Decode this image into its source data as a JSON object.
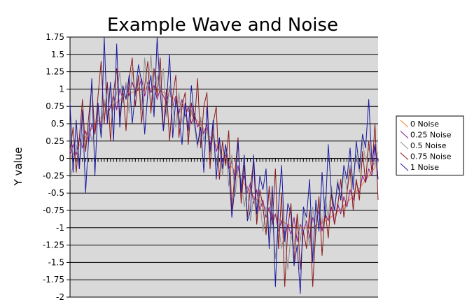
{
  "chart_data": {
    "type": "line",
    "title": "Example Wave and Noise",
    "xlabel": "",
    "ylabel": "Y value",
    "ylim": [
      -2,
      1.75
    ],
    "yticks": [
      "1.75",
      "1.5",
      "1.25",
      "1",
      "0.75",
      "0.5",
      "0.25",
      "0",
      "-0.25",
      "-0.5",
      "-0.75",
      "-1",
      "-1.25",
      "-1.5",
      "-1.75",
      "-2"
    ],
    "ytick_values": [
      1.75,
      1.5,
      1.25,
      1,
      0.75,
      0.5,
      0.25,
      0,
      -0.25,
      -0.5,
      -0.75,
      -1,
      -1.25,
      -1.5,
      -1.75,
      -2
    ],
    "x_count": 100,
    "grid": true,
    "background_color": "#d9d9d9",
    "legend": {
      "position": "right"
    },
    "series": [
      {
        "name": "0 Noise",
        "color": "#f07f28",
        "values": [
          0,
          0.06,
          0.13,
          0.19,
          0.25,
          0.31,
          0.37,
          0.43,
          0.48,
          0.54,
          0.59,
          0.64,
          0.68,
          0.73,
          0.77,
          0.81,
          0.84,
          0.88,
          0.9,
          0.93,
          0.95,
          0.97,
          0.98,
          0.99,
          1.0,
          1.0,
          1.0,
          0.99,
          0.98,
          0.97,
          0.95,
          0.93,
          0.9,
          0.88,
          0.84,
          0.81,
          0.77,
          0.73,
          0.68,
          0.64,
          0.59,
          0.54,
          0.48,
          0.43,
          0.37,
          0.31,
          0.25,
          0.19,
          0.13,
          0.06,
          0,
          -0.06,
          -0.13,
          -0.19,
          -0.25,
          -0.31,
          -0.37,
          -0.43,
          -0.48,
          -0.54,
          -0.59,
          -0.64,
          -0.68,
          -0.73,
          -0.77,
          -0.81,
          -0.84,
          -0.88,
          -0.9,
          -0.93,
          -0.95,
          -0.97,
          -0.98,
          -0.99,
          -1.0,
          -1.0,
          -1.0,
          -0.99,
          -0.98,
          -0.97,
          -0.95,
          -0.93,
          -0.9,
          -0.88,
          -0.84,
          -0.81,
          -0.77,
          -0.73,
          -0.68,
          -0.64,
          -0.59,
          -0.54,
          -0.48,
          -0.43,
          -0.37,
          -0.31,
          -0.25,
          -0.19,
          -0.13,
          -0.06
        ]
      },
      {
        "name": "0.25 Noise",
        "color": "#8b1a8b",
        "values": [
          0.05,
          0.2,
          0.05,
          0.3,
          0.15,
          0.4,
          0.25,
          0.5,
          0.35,
          0.7,
          0.45,
          0.8,
          0.6,
          0.75,
          0.9,
          0.7,
          1.0,
          0.85,
          1.05,
          0.9,
          1.1,
          0.95,
          1.0,
          1.15,
          0.9,
          1.1,
          0.95,
          1.05,
          0.85,
          1.0,
          0.9,
          0.8,
          1.0,
          0.75,
          0.9,
          0.65,
          0.85,
          0.6,
          0.75,
          0.5,
          0.65,
          0.45,
          0.55,
          0.35,
          0.5,
          0.2,
          0.35,
          0.1,
          0.25,
          -0.05,
          0.05,
          -0.15,
          -0.05,
          -0.3,
          -0.1,
          -0.4,
          -0.25,
          -0.5,
          -0.35,
          -0.65,
          -0.45,
          -0.75,
          -0.6,
          -0.85,
          -0.7,
          -0.95,
          -0.8,
          -1.05,
          -0.9,
          -1.15,
          -0.95,
          -1.1,
          -0.85,
          -1.2,
          -0.95,
          -1.05,
          -0.9,
          -1.15,
          -0.85,
          -1.0,
          -0.75,
          -1.05,
          -0.8,
          -0.9,
          -0.7,
          -0.95,
          -0.65,
          -0.8,
          -0.55,
          -0.7,
          -0.45,
          -0.6,
          -0.35,
          -0.5,
          -0.25,
          -0.35,
          -0.15,
          -0.25,
          0.15,
          -0.05
        ]
      },
      {
        "name": "0.5 Noise",
        "color": "#909090",
        "values": [
          -0.3,
          -0.1,
          0.2,
          -0.15,
          0.35,
          0.1,
          0.5,
          0.25,
          0.4,
          0.7,
          0.3,
          0.85,
          0.55,
          1.05,
          0.7,
          0.95,
          1.25,
          0.8,
          1.1,
          0.65,
          1.3,
          0.9,
          1.2,
          0.7,
          1.45,
          0.95,
          1.5,
          0.8,
          1.2,
          0.95,
          1.3,
          0.6,
          1.05,
          0.75,
          0.45,
          0.95,
          0.5,
          0.8,
          0.3,
          0.7,
          0.45,
          0.15,
          0.6,
          0.25,
          0.45,
          0.05,
          0.35,
          -0.1,
          0.2,
          -0.25,
          0.15,
          -0.4,
          0.05,
          -0.55,
          -0.15,
          -0.3,
          -0.7,
          -0.4,
          -0.9,
          -0.55,
          -0.85,
          -0.6,
          -1.05,
          -0.7,
          -1.2,
          -0.85,
          -1.45,
          -0.95,
          -1.3,
          -1.05,
          -1.6,
          -1.1,
          -1.3,
          -0.8,
          -1.2,
          -0.75,
          -1.0,
          -1.25,
          -0.7,
          -1.1,
          -0.65,
          -0.95,
          -0.55,
          -0.85,
          -0.4,
          -0.75,
          -0.3,
          -0.6,
          -0.2,
          -0.45,
          -0.1,
          -0.3,
          0.05,
          -0.2,
          0.25,
          -0.05,
          0.15,
          0.0,
          -0.1,
          0.1
        ]
      },
      {
        "name": "0.75 Noise",
        "color": "#8b1a1a",
        "values": [
          0.1,
          0.45,
          -0.2,
          0.3,
          0.85,
          0.1,
          0.6,
          1.05,
          0.35,
          0.9,
          1.4,
          0.5,
          1.1,
          0.25,
          0.95,
          1.3,
          0.6,
          1.0,
          0.4,
          1.15,
          1.45,
          0.75,
          1.2,
          0.5,
          1.05,
          1.4,
          0.65,
          1.3,
          0.9,
          1.45,
          0.4,
          1.0,
          0.25,
          0.9,
          1.2,
          0.3,
          0.75,
          0.95,
          0.2,
          0.8,
          0.5,
          1.15,
          0.15,
          0.75,
          0.95,
          -0.15,
          0.5,
          0.75,
          -0.3,
          0.25,
          -0.1,
          0.4,
          -0.75,
          -0.2,
          0.3,
          -0.65,
          -0.1,
          -0.85,
          -0.4,
          -0.05,
          -0.95,
          -0.45,
          -0.7,
          -1.1,
          -0.4,
          -0.95,
          -0.15,
          -1.3,
          -0.5,
          -1.85,
          -1.0,
          -0.65,
          -1.5,
          -0.8,
          -1.6,
          -1.05,
          -1.3,
          -0.75,
          -1.85,
          -1.0,
          -0.55,
          -1.4,
          -0.75,
          -1.15,
          -0.5,
          -0.95,
          -0.7,
          -0.3,
          -0.85,
          -0.5,
          -0.15,
          -0.75,
          -0.3,
          -0.6,
          0.1,
          -0.35,
          0.25,
          -0.2,
          0.5,
          -0.6
        ]
      },
      {
        "name": "1 Noise",
        "color": "#1a1aa0",
        "values": [
          0.8,
          -0.2,
          0.55,
          -0.15,
          0.7,
          -0.5,
          0.3,
          1.15,
          -0.25,
          0.8,
          0.3,
          1.75,
          0.5,
          1.1,
          0.25,
          1.65,
          0.45,
          1.05,
          0.85,
          1.2,
          0.5,
          0.95,
          1.35,
          1.1,
          0.35,
          0.95,
          1.2,
          0.6,
          1.75,
          0.95,
          0.4,
          0.8,
          1.5,
          0.3,
          0.85,
          0.6,
          0.2,
          0.8,
          0.4,
          1.05,
          0.55,
          0.2,
          0.45,
          -0.2,
          0.75,
          0.1,
          0.55,
          -0.3,
          0.3,
          -0.15,
          0.2,
          -0.1,
          -0.85,
          -0.4,
          0.25,
          -0.5,
          0.05,
          -0.9,
          -0.75,
          0.05,
          -0.8,
          -0.25,
          -0.45,
          -0.15,
          -1.3,
          -0.4,
          -1.85,
          -0.7,
          -0.1,
          -1.2,
          -0.65,
          -0.8,
          -1.55,
          -1.25,
          -1.95,
          -0.7,
          -0.85,
          -0.3,
          -1.5,
          -0.6,
          -1.05,
          -0.2,
          -0.85,
          0.2,
          -0.5,
          -0.75,
          -0.35,
          -0.6,
          -0.1,
          -0.3,
          0.15,
          -0.45,
          0.25,
          -0.15,
          0.35,
          0.15,
          0.85,
          -0.05,
          0.2,
          -0.3
        ]
      }
    ]
  }
}
